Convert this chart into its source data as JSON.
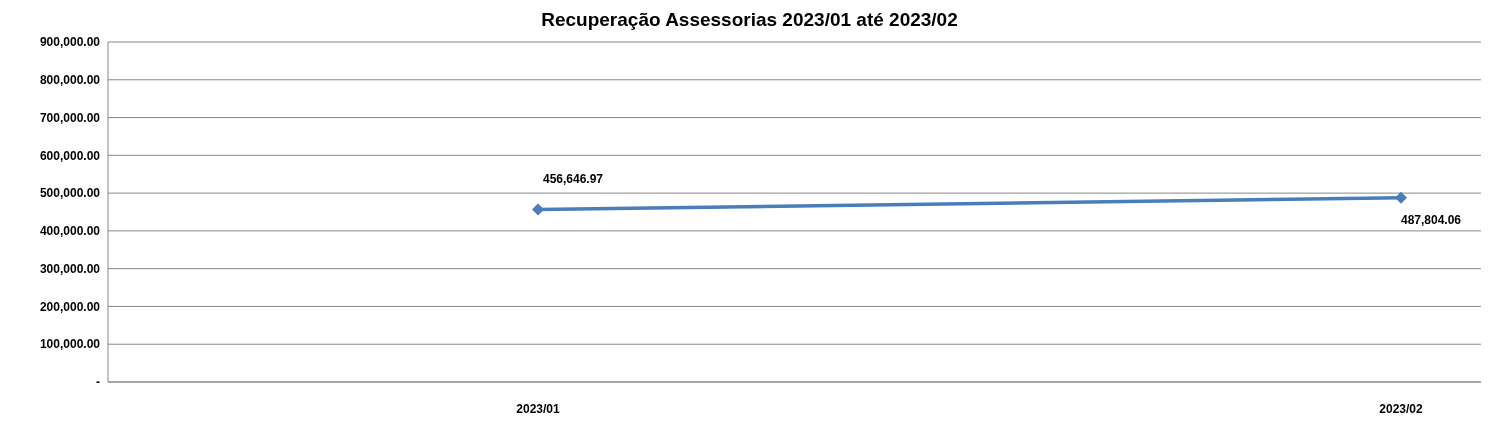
{
  "chart_data": {
    "type": "line",
    "title": "Recuperação Assessorias 2023/01 até 2023/02",
    "categories": [
      "2023/01",
      "2023/02"
    ],
    "series": [
      {
        "color": "#4a7ebb",
        "values": [
          456646.97,
          487804.06
        ],
        "value_labels": [
          "456,646.97",
          "487,804.06"
        ]
      }
    ],
    "ylim": [
      0,
      900000
    ],
    "yticks": [
      {
        "value": 0,
        "label": "-"
      },
      {
        "value": 100000,
        "label": "100,000.00"
      },
      {
        "value": 200000,
        "label": "200,000.00"
      },
      {
        "value": 300000,
        "label": "300,000.00"
      },
      {
        "value": 400000,
        "label": "400,000.00"
      },
      {
        "value": 500000,
        "label": "500,000.00"
      },
      {
        "value": 600000,
        "label": "600,000.00"
      },
      {
        "value": 700000,
        "label": "700,000.00"
      },
      {
        "value": 800000,
        "label": "800,000.00"
      },
      {
        "value": 900000,
        "label": "900,000.00"
      }
    ],
    "grid": "y",
    "marker": "diamond",
    "line_style": "solid"
  }
}
